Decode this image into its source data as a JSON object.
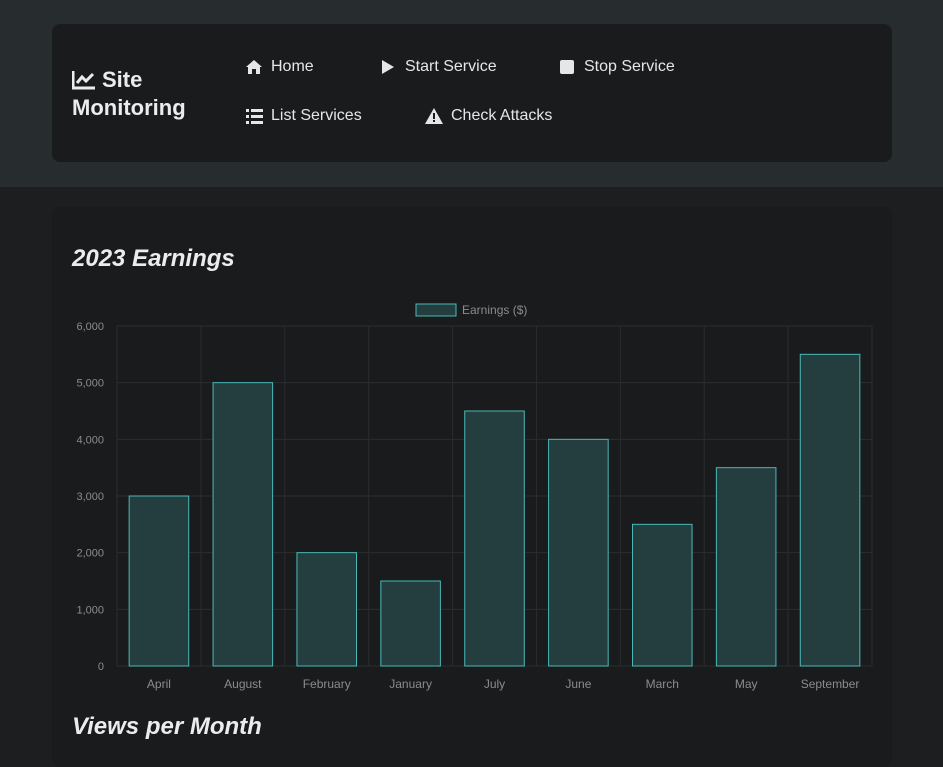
{
  "nav": {
    "brand": "Site Monitoring",
    "items": [
      {
        "label": "Home",
        "icon": "home-icon"
      },
      {
        "label": "Start Service",
        "icon": "play-icon"
      },
      {
        "label": "Stop Service",
        "icon": "stop-icon"
      },
      {
        "label": "List Services",
        "icon": "list-icon"
      },
      {
        "label": "Check Attacks",
        "icon": "warning-icon"
      }
    ]
  },
  "colors": {
    "bar_fill": "#243d3e",
    "bar_stroke": "#4bb8b8",
    "grid": "#2a2c2e",
    "tick_text": "#8c8c8c"
  },
  "chart_data": {
    "type": "bar",
    "title": "2023 Earnings",
    "categories": [
      "April",
      "August",
      "February",
      "January",
      "July",
      "June",
      "March",
      "May",
      "September"
    ],
    "series": [
      {
        "name": "Earnings ($)",
        "values": [
          3000,
          5000,
          2000,
          1500,
          4500,
          4000,
          2500,
          3500,
          5500
        ]
      }
    ],
    "ylim": [
      0,
      6000
    ],
    "yticks": [
      "0",
      "1,000",
      "2,000",
      "3,000",
      "4,000",
      "5,000",
      "6,000"
    ],
    "grid": true,
    "legend": "top-center"
  },
  "next_section_title": "Views per Month"
}
